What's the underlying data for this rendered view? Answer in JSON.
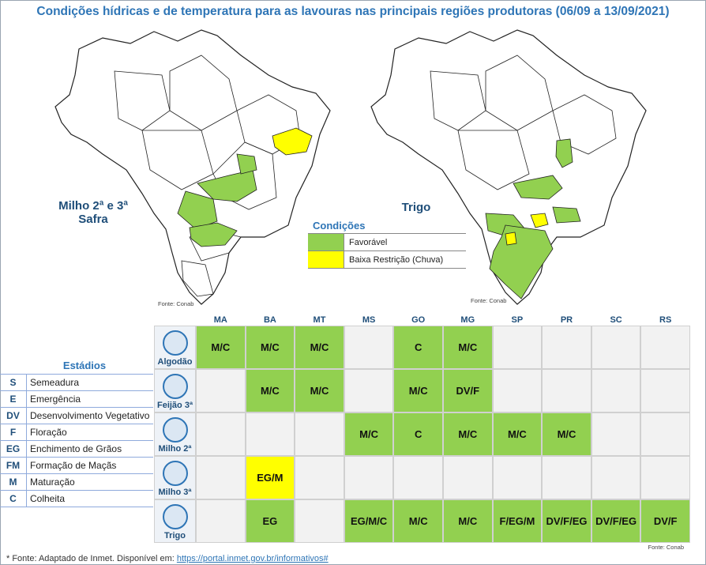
{
  "title": "Condições hídricas e de temperatura para as lavouras nas principais regiões produtoras (06/09 a 13/09/2021)",
  "maps": {
    "left_label_line1": "Milho 2ª e 3ª",
    "left_label_line2": "Safra",
    "right_label": "Trigo",
    "source_left": "Fonte: Conab",
    "source_right": "Fonte: Conab"
  },
  "legend": {
    "title": "Condições",
    "items": [
      {
        "label": "Favorável",
        "color": "#92d050"
      },
      {
        "label": "Baixa Restrição (Chuva)",
        "color": "#ffff00"
      }
    ]
  },
  "estadios": {
    "title": "Estádios",
    "items": [
      {
        "code": "S",
        "desc": "Semeadura"
      },
      {
        "code": "E",
        "desc": "Emergência"
      },
      {
        "code": "DV",
        "desc": "Desenvolvimento Vegetativo"
      },
      {
        "code": "F",
        "desc": "Floração"
      },
      {
        "code": "EG",
        "desc": "Enchimento de Grãos"
      },
      {
        "code": "FM",
        "desc": "Formação de Maçãs"
      },
      {
        "code": "M",
        "desc": "Maturação"
      },
      {
        "code": "C",
        "desc": "Colheita"
      }
    ]
  },
  "table": {
    "states": [
      "MA",
      "BA",
      "MT",
      "MS",
      "GO",
      "MG",
      "SP",
      "PR",
      "SC",
      "RS"
    ],
    "crops": [
      {
        "name": "Algodão",
        "icon": "cotton-icon",
        "cells": [
          {
            "t": "M/C",
            "c": "g"
          },
          {
            "t": "M/C",
            "c": "g"
          },
          {
            "t": "M/C",
            "c": "g"
          },
          {
            "t": "",
            "c": ""
          },
          {
            "t": "C",
            "c": "g"
          },
          {
            "t": "M/C",
            "c": "g"
          },
          {
            "t": "",
            "c": ""
          },
          {
            "t": "",
            "c": ""
          },
          {
            "t": "",
            "c": ""
          },
          {
            "t": "",
            "c": ""
          }
        ]
      },
      {
        "name": "Feijão 3ª",
        "icon": "bean-icon",
        "cells": [
          {
            "t": "",
            "c": ""
          },
          {
            "t": "M/C",
            "c": "g"
          },
          {
            "t": "M/C",
            "c": "g"
          },
          {
            "t": "",
            "c": ""
          },
          {
            "t": "M/C",
            "c": "g"
          },
          {
            "t": "DV/F",
            "c": "g"
          },
          {
            "t": "",
            "c": ""
          },
          {
            "t": "",
            "c": ""
          },
          {
            "t": "",
            "c": ""
          },
          {
            "t": "",
            "c": ""
          }
        ]
      },
      {
        "name": "Milho 2ª",
        "icon": "corn-icon",
        "cells": [
          {
            "t": "",
            "c": ""
          },
          {
            "t": "",
            "c": ""
          },
          {
            "t": "",
            "c": ""
          },
          {
            "t": "M/C",
            "c": "g"
          },
          {
            "t": "C",
            "c": "g"
          },
          {
            "t": "M/C",
            "c": "g"
          },
          {
            "t": "M/C",
            "c": "g"
          },
          {
            "t": "M/C",
            "c": "g"
          },
          {
            "t": "",
            "c": ""
          },
          {
            "t": "",
            "c": ""
          }
        ]
      },
      {
        "name": "Milho 3ª",
        "icon": "corn-icon",
        "cells": [
          {
            "t": "",
            "c": ""
          },
          {
            "t": "EG/M",
            "c": "y"
          },
          {
            "t": "",
            "c": ""
          },
          {
            "t": "",
            "c": ""
          },
          {
            "t": "",
            "c": ""
          },
          {
            "t": "",
            "c": ""
          },
          {
            "t": "",
            "c": ""
          },
          {
            "t": "",
            "c": ""
          },
          {
            "t": "",
            "c": ""
          },
          {
            "t": "",
            "c": ""
          }
        ]
      },
      {
        "name": "Trigo",
        "icon": "wheat-icon",
        "cells": [
          {
            "t": "",
            "c": ""
          },
          {
            "t": "EG",
            "c": "g"
          },
          {
            "t": "",
            "c": ""
          },
          {
            "t": "EG/M/C",
            "c": "g"
          },
          {
            "t": "M/C",
            "c": "g"
          },
          {
            "t": "M/C",
            "c": "g"
          },
          {
            "t": "F/EG/M",
            "c": "g"
          },
          {
            "t": "DV/F/EG",
            "c": "g"
          },
          {
            "t": "DV/F/EG",
            "c": "g"
          },
          {
            "t": "DV/F",
            "c": "g"
          }
        ]
      }
    ],
    "source": "Fonte: Conab"
  },
  "footnote": {
    "text": "* Fonte: Adaptado de Inmet. Disponível em: ",
    "link": "https://portal.inmet.gov.br/informativos#"
  }
}
